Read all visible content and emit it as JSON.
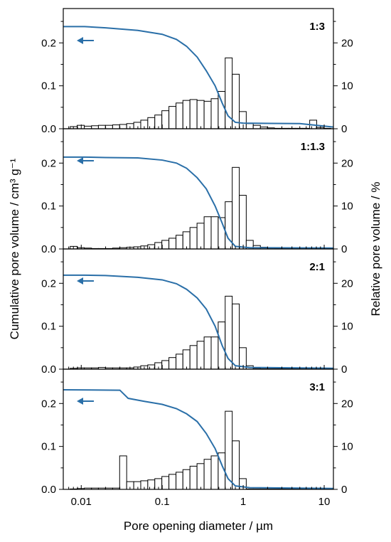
{
  "chart_data": {
    "type": "bar",
    "xlabel": "Pore opening diameter / µm",
    "ylabel_left": "Cumulative pore volume / cm³ g⁻¹",
    "ylabel_right": "Relative pore volume / %",
    "x_scale": "log",
    "xlim": [
      0.006,
      13
    ],
    "ylim_left": [
      0,
      0.28
    ],
    "ylim_right": [
      0,
      28
    ],
    "x_ticks": [
      {
        "value": 0.01,
        "label": "0.01"
      },
      {
        "value": 0.1,
        "label": "0.1"
      },
      {
        "value": 1,
        "label": "1"
      },
      {
        "value": 10,
        "label": "10"
      }
    ],
    "y_ticks_left": [
      {
        "value": 0.0,
        "label": "0.0"
      },
      {
        "value": 0.1,
        "label": "0.1"
      },
      {
        "value": 0.2,
        "label": "0.2"
      }
    ],
    "y_ticks_right": [
      {
        "value": 0,
        "label": "0"
      },
      {
        "value": 10,
        "label": "10"
      },
      {
        "value": 20,
        "label": "20"
      }
    ],
    "bin_edges": [
      0.006,
      0.0073,
      0.0089,
      0.0109,
      0.0134,
      0.0163,
      0.0199,
      0.0244,
      0.0298,
      0.0364,
      0.0445,
      0.0543,
      0.0663,
      0.081,
      0.099,
      0.121,
      0.148,
      0.18,
      0.22,
      0.269,
      0.329,
      0.402,
      0.491,
      0.599,
      0.732,
      0.894,
      1.09,
      1.33,
      1.63,
      1.99,
      2.43,
      2.97,
      3.63,
      4.43,
      5.42,
      6.62,
      8.08,
      9.87,
      12.06
    ],
    "colors": {
      "curve": "#2a6fa8",
      "bars": "#000000"
    },
    "panels": [
      {
        "label": "1:3",
        "relative_percent": [
          0,
          0.5,
          0.8,
          0.6,
          0.7,
          0.8,
          0.8,
          0.9,
          1.0,
          1.2,
          1.5,
          2.0,
          2.6,
          3.2,
          4.2,
          5.2,
          6.0,
          6.6,
          6.8,
          6.6,
          6.4,
          7.0,
          8.7,
          16.5,
          12.7,
          4.0,
          1.2,
          0.8,
          0.4,
          0.2,
          0.1,
          0.1,
          0.1,
          0.1,
          0.1,
          2.0,
          0.3,
          0.1
        ],
        "cumulative": [
          [
            0.006,
            0.238
          ],
          [
            0.011,
            0.238
          ],
          [
            0.02,
            0.235
          ],
          [
            0.05,
            0.229
          ],
          [
            0.1,
            0.22
          ],
          [
            0.15,
            0.208
          ],
          [
            0.2,
            0.192
          ],
          [
            0.27,
            0.167
          ],
          [
            0.35,
            0.135
          ],
          [
            0.45,
            0.1
          ],
          [
            0.55,
            0.06
          ],
          [
            0.65,
            0.03
          ],
          [
            0.8,
            0.015
          ],
          [
            1.0,
            0.013
          ],
          [
            5,
            0.012
          ],
          [
            13,
            0.004
          ]
        ]
      },
      {
        "label": "1:1.3",
        "relative_percent": [
          0,
          0.6,
          0.3,
          0.2,
          0.1,
          0.1,
          0.1,
          0.2,
          0.3,
          0.4,
          0.5,
          0.7,
          1.0,
          1.5,
          2.0,
          2.5,
          3.2,
          4.0,
          5.0,
          6.0,
          7.5,
          7.5,
          7.3,
          11.0,
          19.0,
          12.5,
          2.0,
          0.8,
          0.4,
          0.2,
          0.1,
          0.1,
          0.1,
          0.1,
          0.1,
          0.1,
          0.1,
          0.1
        ],
        "cumulative": [
          [
            0.006,
            0.214
          ],
          [
            0.011,
            0.214
          ],
          [
            0.02,
            0.213
          ],
          [
            0.05,
            0.212
          ],
          [
            0.1,
            0.207
          ],
          [
            0.15,
            0.2
          ],
          [
            0.2,
            0.188
          ],
          [
            0.27,
            0.166
          ],
          [
            0.35,
            0.14
          ],
          [
            0.45,
            0.1
          ],
          [
            0.55,
            0.06
          ],
          [
            0.65,
            0.025
          ],
          [
            0.8,
            0.006
          ],
          [
            1.2,
            0.003
          ],
          [
            13,
            0.002
          ]
        ]
      },
      {
        "label": "2:1",
        "relative_percent": [
          0,
          0.2,
          0.3,
          0.3,
          0.3,
          0.4,
          0.3,
          0.3,
          0.3,
          0.3,
          0.5,
          0.8,
          1.0,
          1.5,
          2.0,
          2.7,
          3.5,
          4.5,
          5.5,
          6.5,
          7.5,
          7.5,
          11.0,
          17.0,
          15.2,
          5.0,
          0.8,
          0.2,
          0.1,
          0.1,
          0.1,
          0.1,
          0.1,
          0.1,
          0.1,
          0.1,
          0.1,
          0.1
        ],
        "cumulative": [
          [
            0.006,
            0.219
          ],
          [
            0.011,
            0.219
          ],
          [
            0.02,
            0.218
          ],
          [
            0.05,
            0.214
          ],
          [
            0.1,
            0.208
          ],
          [
            0.15,
            0.199
          ],
          [
            0.2,
            0.186
          ],
          [
            0.27,
            0.166
          ],
          [
            0.35,
            0.14
          ],
          [
            0.45,
            0.1
          ],
          [
            0.55,
            0.055
          ],
          [
            0.65,
            0.025
          ],
          [
            0.8,
            0.008
          ],
          [
            1.2,
            0.004
          ],
          [
            13,
            0.002
          ]
        ]
      },
      {
        "label": "3:1",
        "relative_percent": [
          0,
          0.1,
          0.2,
          0.3,
          0.3,
          0.3,
          0.3,
          0.3,
          7.8,
          1.8,
          1.8,
          2.0,
          2.2,
          2.5,
          3.0,
          3.5,
          4.0,
          4.6,
          5.4,
          6.0,
          7.0,
          7.8,
          8.5,
          18.2,
          11.3,
          2.5,
          0.1,
          0.1,
          0.1,
          0.1,
          0.1,
          0.1,
          0.1,
          0.1,
          0.1,
          0.1,
          0.1,
          0.1
        ],
        "cumulative": [
          [
            0.006,
            0.232
          ],
          [
            0.03,
            0.231
          ],
          [
            0.038,
            0.212
          ],
          [
            0.06,
            0.205
          ],
          [
            0.1,
            0.198
          ],
          [
            0.15,
            0.188
          ],
          [
            0.2,
            0.176
          ],
          [
            0.27,
            0.158
          ],
          [
            0.35,
            0.13
          ],
          [
            0.45,
            0.095
          ],
          [
            0.55,
            0.055
          ],
          [
            0.65,
            0.025
          ],
          [
            0.8,
            0.008
          ],
          [
            1.2,
            0.004
          ],
          [
            13,
            0.002
          ]
        ]
      }
    ]
  }
}
